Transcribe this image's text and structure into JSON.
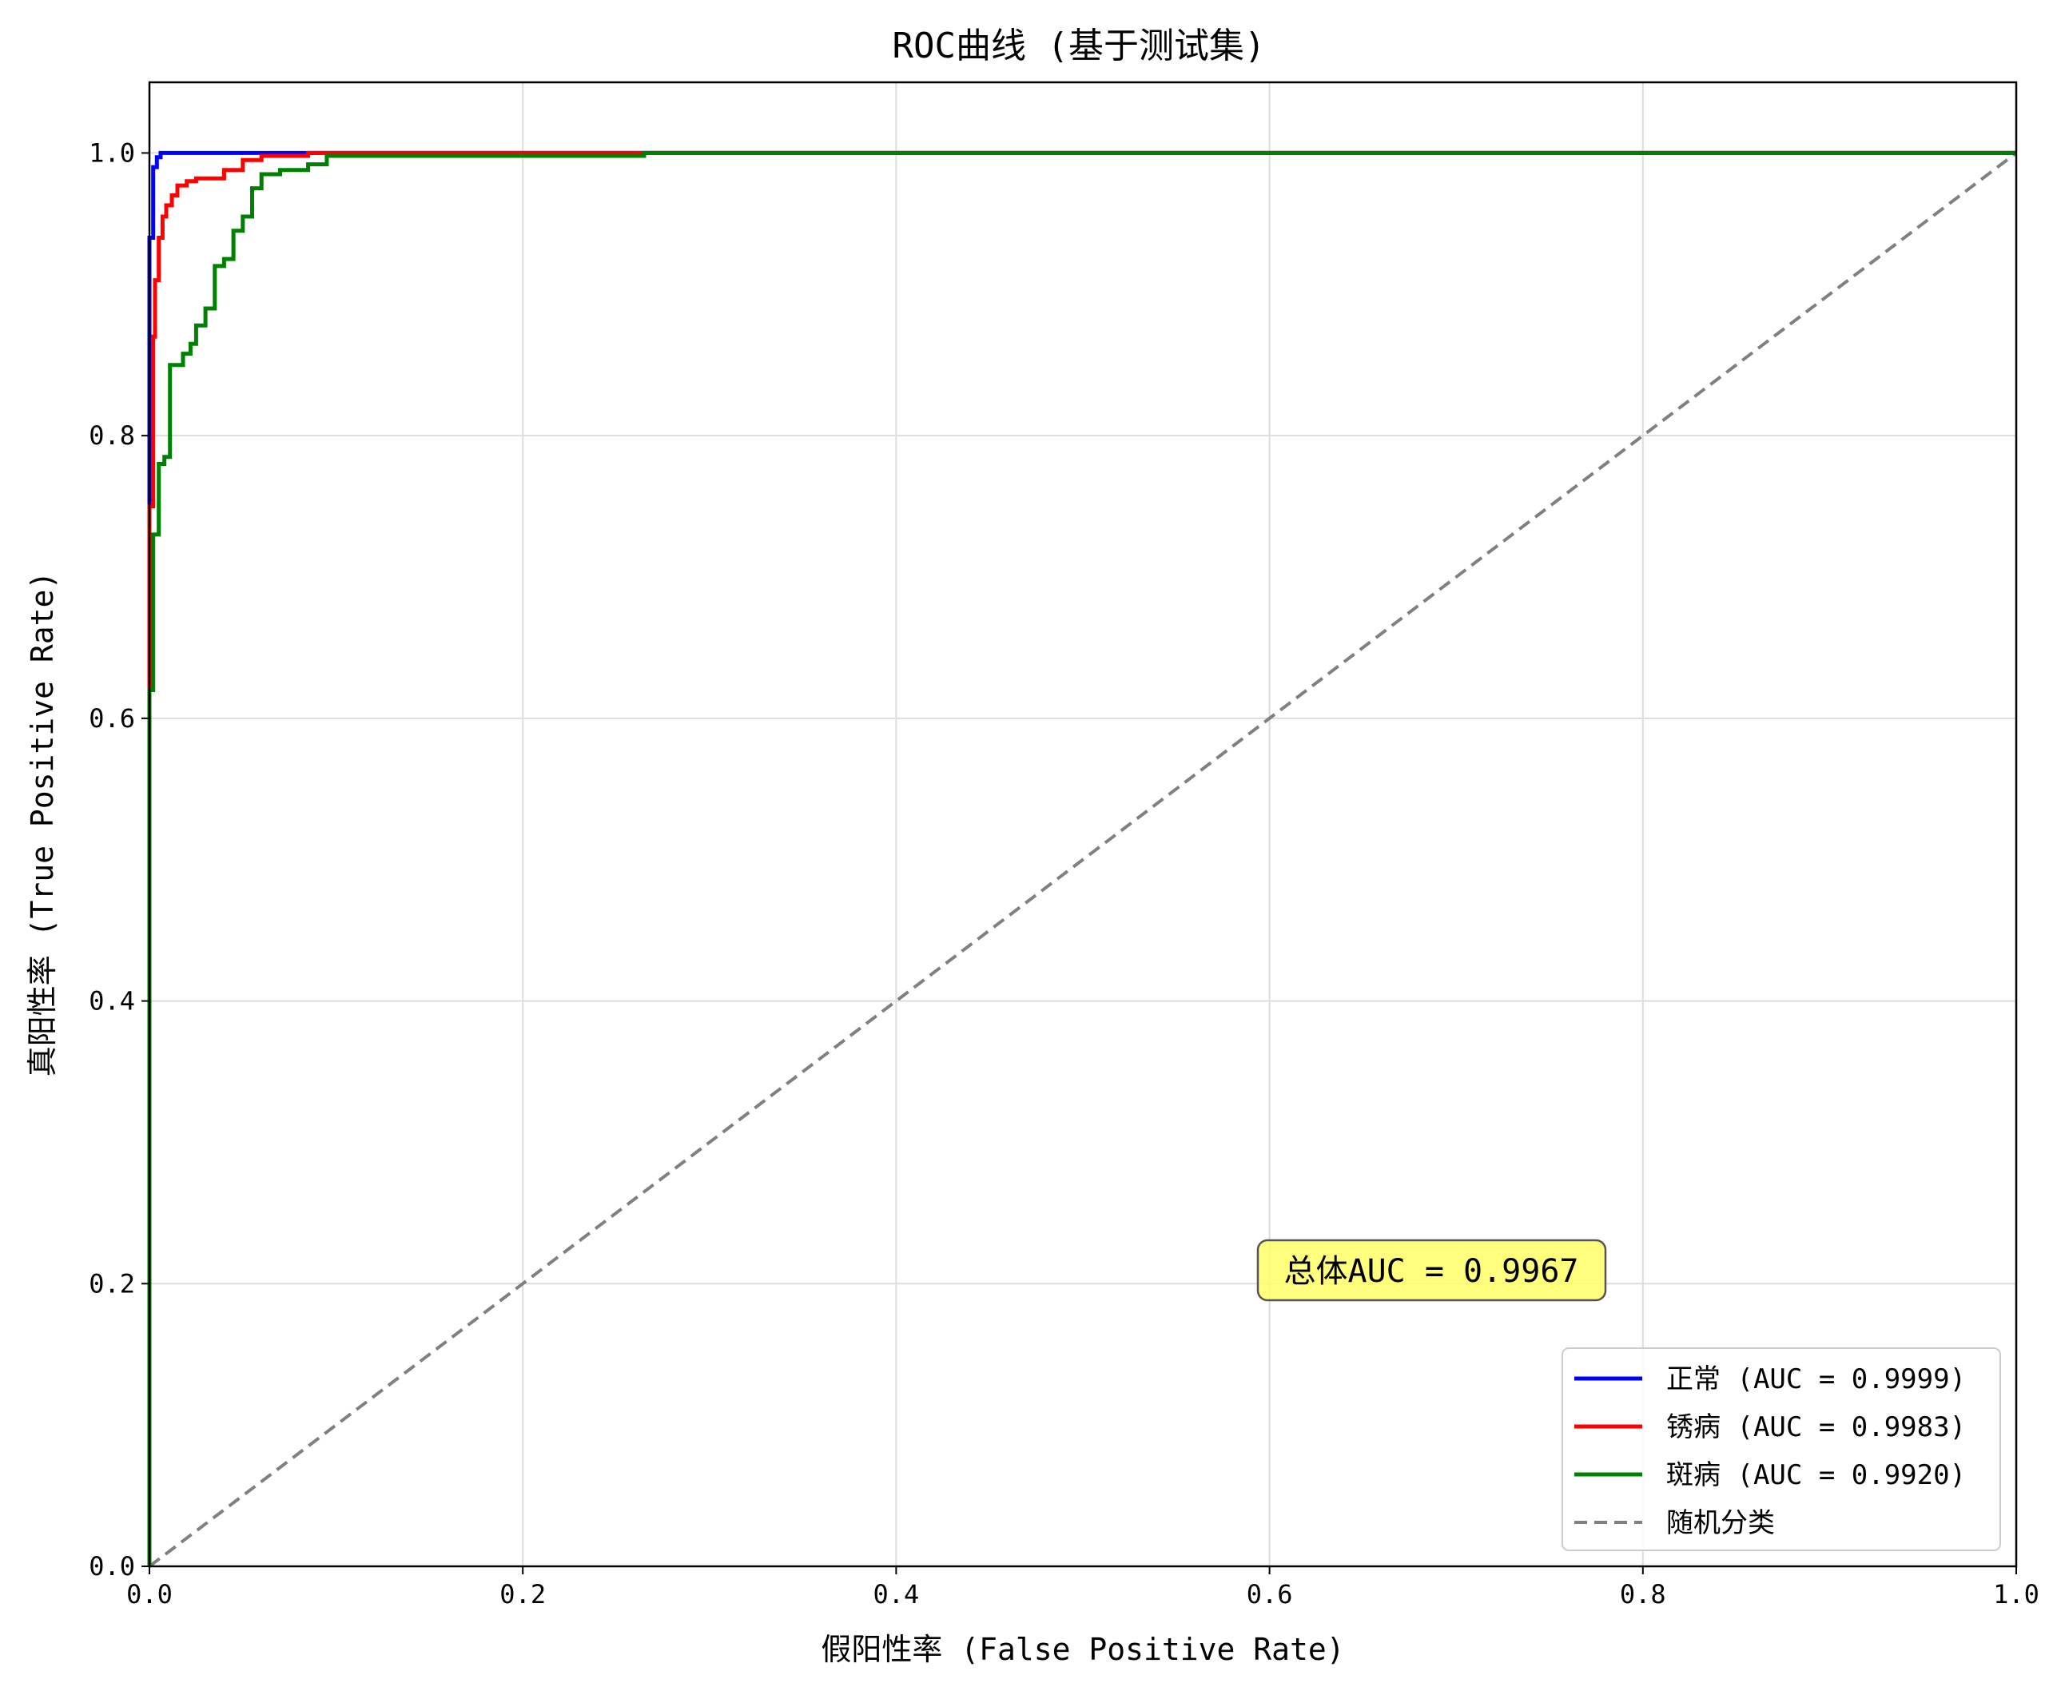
{
  "chart_data": {
    "type": "line",
    "title": "ROC曲线 (基于测试集)",
    "xlabel": "假阳性率 (False Positive Rate)",
    "ylabel": "真阳性率 (True Positive Rate)",
    "xlim": [
      0,
      1
    ],
    "ylim": [
      0,
      1.05
    ],
    "xticks": [
      "0.0",
      "0.2",
      "0.4",
      "0.6",
      "0.8",
      "1.0"
    ],
    "yticks": [
      "0.0",
      "0.2",
      "0.4",
      "0.6",
      "0.8",
      "1.0"
    ],
    "grid": true,
    "legend_position": "lower-right",
    "annotation": {
      "text": "总体AUC = 0.9967",
      "x": 0.68,
      "y": 0.21
    },
    "series": [
      {
        "name": "正常 (AUC = 0.9999)",
        "color": "#0000ff",
        "style": "solid",
        "x": [
          0,
          0,
          0.002,
          0.002,
          0.004,
          0.004,
          0.006,
          0.006,
          1.0
        ],
        "y": [
          0,
          0.94,
          0.94,
          0.99,
          0.99,
          0.997,
          0.997,
          1.0,
          1.0
        ]
      },
      {
        "name": "锈病 (AUC = 0.9983)",
        "color": "#ff0000",
        "style": "solid",
        "x": [
          0,
          0,
          0.002,
          0.002,
          0.003,
          0.003,
          0.005,
          0.005,
          0.007,
          0.007,
          0.009,
          0.009,
          0.012,
          0.012,
          0.015,
          0.015,
          0.02,
          0.02,
          0.025,
          0.025,
          0.04,
          0.04,
          0.05,
          0.05,
          0.06,
          0.06,
          0.085,
          0.085,
          1.0
        ],
        "y": [
          0,
          0.75,
          0.75,
          0.87,
          0.87,
          0.91,
          0.91,
          0.94,
          0.94,
          0.955,
          0.955,
          0.963,
          0.963,
          0.97,
          0.97,
          0.977,
          0.977,
          0.98,
          0.98,
          0.982,
          0.982,
          0.988,
          0.988,
          0.995,
          0.995,
          0.998,
          0.998,
          1.0,
          1.0
        ]
      },
      {
        "name": "斑病 (AUC = 0.9920)",
        "color": "#008000",
        "style": "solid",
        "x": [
          0,
          0,
          0.002,
          0.002,
          0.005,
          0.005,
          0.008,
          0.008,
          0.011,
          0.011,
          0.018,
          0.018,
          0.022,
          0.022,
          0.025,
          0.025,
          0.03,
          0.03,
          0.035,
          0.035,
          0.04,
          0.04,
          0.045,
          0.045,
          0.05,
          0.05,
          0.055,
          0.055,
          0.06,
          0.06,
          0.07,
          0.07,
          0.085,
          0.085,
          0.095,
          0.095,
          0.265,
          0.265,
          1.0
        ],
        "y": [
          0,
          0.62,
          0.62,
          0.73,
          0.73,
          0.78,
          0.78,
          0.785,
          0.785,
          0.85,
          0.85,
          0.858,
          0.858,
          0.865,
          0.865,
          0.878,
          0.878,
          0.89,
          0.89,
          0.92,
          0.92,
          0.925,
          0.925,
          0.945,
          0.945,
          0.955,
          0.955,
          0.975,
          0.975,
          0.985,
          0.985,
          0.988,
          0.988,
          0.992,
          0.992,
          0.998,
          0.998,
          1.0,
          1.0
        ]
      },
      {
        "name": "随机分类",
        "color": "#808080",
        "style": "dashed",
        "x": [
          0,
          1
        ],
        "y": [
          0,
          1
        ]
      }
    ]
  }
}
